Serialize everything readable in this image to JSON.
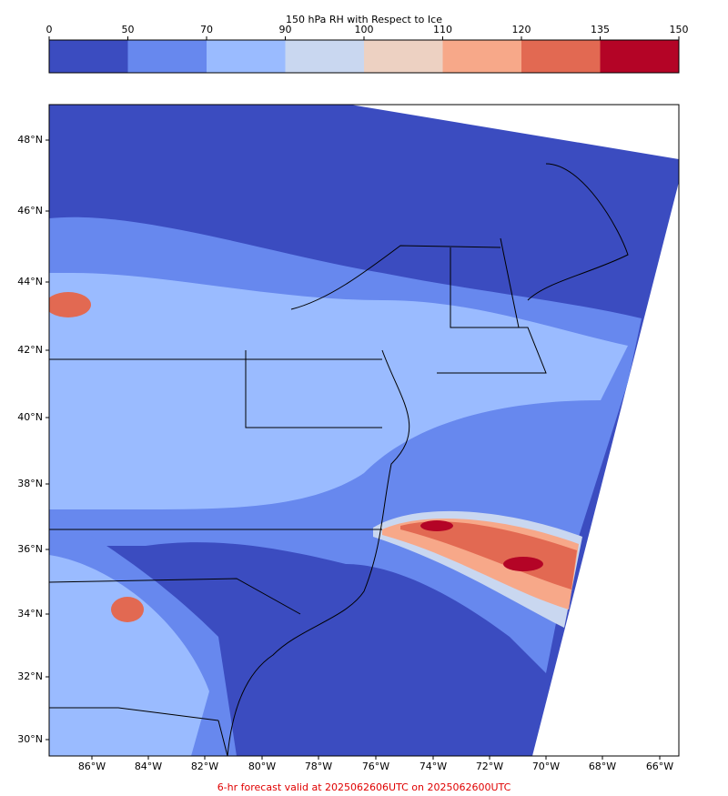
{
  "colorbar": {
    "title": "150 hPa RH with Respect to Ice",
    "ticks": [
      0,
      50,
      70,
      90,
      100,
      110,
      120,
      135,
      150
    ],
    "colors": [
      "#3b4cc0",
      "#6788ee",
      "#9abbff",
      "#c9d7f0",
      "#edd1c2",
      "#f7a889",
      "#e26952",
      "#b40426"
    ]
  },
  "map": {
    "lat_labels": [
      "48°N",
      "46°N",
      "44°N",
      "42°N",
      "40°N",
      "38°N",
      "36°N",
      "34°N",
      "32°N",
      "30°N"
    ],
    "lon_labels": [
      "86°W",
      "84°W",
      "82°W",
      "80°W",
      "78°W",
      "76°W",
      "74°W",
      "72°W",
      "70°W",
      "68°W",
      "66°W"
    ]
  },
  "footer": "6-hr forecast valid at 2025062606UTC on 2025062600UTC"
}
